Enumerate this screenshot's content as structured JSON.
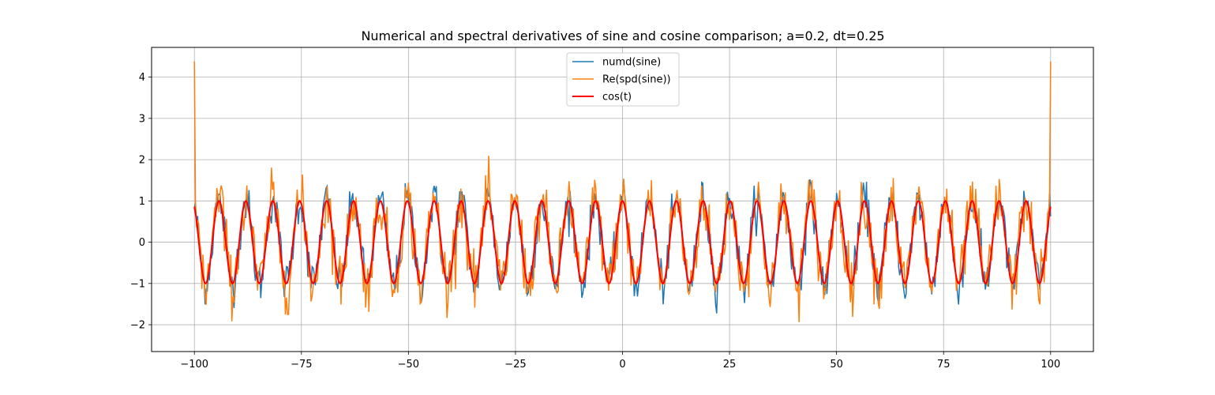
{
  "chart_data": {
    "type": "line",
    "title": "Numerical and spectral derivatives of sine and cosine comparison; a=0.2, dt=0.25",
    "xlabel": "",
    "ylabel": "",
    "xlim": [
      -110,
      110
    ],
    "ylim": [
      -2.65,
      4.72
    ],
    "xticks": [
      -100,
      -75,
      -50,
      -25,
      0,
      25,
      50,
      75,
      100
    ],
    "xtick_labels": [
      "−100",
      "−75",
      "−50",
      "−25",
      "0",
      "25",
      "50",
      "75",
      "100"
    ],
    "yticks": [
      -2,
      -1,
      0,
      1,
      2,
      3,
      4
    ],
    "ytick_labels": [
      "−2",
      "−1",
      "0",
      "1",
      "2",
      "3",
      "4"
    ],
    "grid": true,
    "legend_position": "top-center",
    "series": [
      {
        "name": "numd(sine)",
        "color": "#1f77b4",
        "description": "numerical derivative of noisy sine (a=0.2 noise), dt=0.25, t from -100 to 100; tracks cos(t) with noise of about ±0.5",
        "x_range": [
          -100,
          100
        ],
        "dt": 0.25
      },
      {
        "name": "Re(spd(sine))",
        "color": "#ff7f0e",
        "description": "real part of spectral derivative of noisy sine; tracks cos(t) with larger noise, edge spikes of about 4.4 at t=-100 and t=100",
        "x_range": [
          -100,
          100
        ],
        "dt": 0.25,
        "edge_values": [
          4.38,
          4.38
        ]
      },
      {
        "name": "cos(t)",
        "color": "#ff0000",
        "x_range": [
          -100,
          100
        ],
        "function": "cos(t)"
      }
    ]
  }
}
